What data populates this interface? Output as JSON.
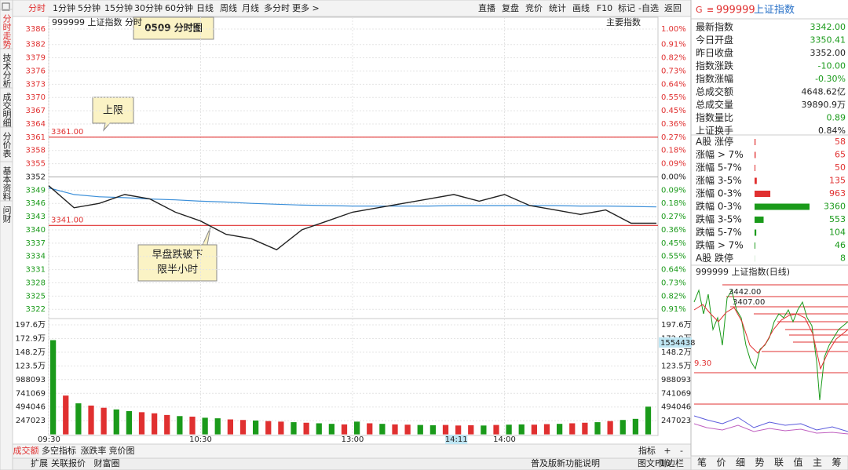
{
  "toolbar": {
    "periods": [
      "分时",
      "1分钟",
      "5分钟",
      "15分钟",
      "30分钟",
      "60分钟",
      "日线",
      "周线",
      "月线",
      "多分时",
      "更多 >"
    ],
    "tools": [
      "直播",
      "复盘",
      "竞价",
      "统计",
      "画线",
      "F10",
      "标记",
      "-自选",
      "返回"
    ]
  },
  "side_tabs": [
    "分时走势",
    "技术分析",
    "成交明细",
    "分价表",
    "基本资料",
    "问财"
  ],
  "intraday": {
    "title": "999999 上证指数  分时",
    "index_label": "主要指数",
    "annotation": "0509  分时图",
    "up_color": "#e03030",
    "down_color": "#1a9a1a",
    "price_axis": {
      "ylim": [
        3321.5,
        3385.5
      ],
      "yticks": [
        {
          "value": 3385.5,
          "label": "3386"
        },
        3382,
        3379,
        3376,
        3373,
        3370,
        3367,
        3364,
        3361,
        3358,
        3355,
        3352,
        3349,
        3346,
        3343,
        3340,
        3337,
        3334,
        3331,
        3328,
        3325,
        3322
      ],
      "pct_labels": [
        "1.00%",
        "0.91%",
        "0.82%",
        "0.73%",
        "0.64%",
        "0.55%",
        "0.45%",
        "0.36%",
        "0.27%",
        "0.18%",
        "0.09%",
        "0.00%",
        "0.09%",
        "0.18%",
        "0.27%",
        "0.36%",
        "0.45%",
        "0.55%",
        "0.64%",
        "0.73%",
        "0.82%",
        "0.91%"
      ]
    },
    "limits": [
      {
        "value": 3361,
        "label": "3361.00"
      },
      {
        "value": 3341,
        "label": "3341.00"
      }
    ],
    "limit_color": "#e03030",
    "callouts": {
      "upper": "上限",
      "break": [
        "早盘跌破下",
        "限半小时"
      ]
    },
    "xlim": [
      0,
      240
    ],
    "time_ticks": [
      {
        "value": 0,
        "label": "09:30"
      },
      {
        "value": 60,
        "label": "10:30"
      },
      {
        "value": 120,
        "label": "13:00"
      },
      {
        "value": 180,
        "label": "14:00"
      }
    ],
    "cursor_time": {
      "value": 161,
      "label": "14:11"
    },
    "series": {
      "x": [
        0,
        10,
        20,
        30,
        40,
        50,
        60,
        70,
        80,
        90,
        100,
        110,
        120,
        130,
        140,
        150,
        160,
        170,
        180,
        190,
        200,
        210,
        220,
        230,
        240
      ],
      "price": [
        3350,
        3345,
        3346,
        3348,
        3347,
        3344,
        3342,
        3339,
        3338,
        3335.5,
        3340,
        3342,
        3344,
        3345,
        3346,
        3347,
        3348,
        3346.5,
        3348,
        3345.5,
        3344.5,
        3343.5,
        3344.5,
        3341.5,
        3341.5
      ],
      "average": [
        3349.5,
        3348,
        3347.5,
        3347.3,
        3347,
        3346.8,
        3346.5,
        3346.3,
        3346,
        3345.8,
        3345.6,
        3345.5,
        3345.4,
        3345.4,
        3345.4,
        3345.4,
        3345.5,
        3345.5,
        3345.5,
        3345.5,
        3345.5,
        3345.4,
        3345.4,
        3345.3,
        3345.2
      ],
      "price_color": "#222222",
      "average_color": "#3b8fd9"
    },
    "volume": {
      "ylim": [
        0,
        1976184
      ],
      "yticks": [
        {
          "value": 1976184,
          "label": "197.6万"
        },
        {
          "value": 1729161,
          "label": "172.9万"
        },
        {
          "value": 1482138,
          "label": "148.2万"
        },
        {
          "value": 1235115,
          "label": "123.5万"
        },
        988093,
        741069,
        494046,
        247023
      ],
      "current": "1554438",
      "x": [
        0,
        5,
        10,
        15,
        20,
        25,
        30,
        35,
        40,
        45,
        50,
        55,
        60,
        65,
        70,
        75,
        80,
        85,
        90,
        95,
        100,
        105,
        110,
        115,
        120,
        125,
        130,
        135,
        140,
        145,
        150,
        155,
        160,
        165,
        170,
        175,
        180,
        185,
        190,
        195,
        200,
        205,
        210,
        215,
        220,
        225,
        230,
        235
      ],
      "values": [
        1700000,
        700000,
        560000,
        520000,
        480000,
        450000,
        420000,
        400000,
        380000,
        350000,
        330000,
        320000,
        300000,
        290000,
        270000,
        260000,
        250000,
        240000,
        230000,
        220000,
        210000,
        200000,
        190000,
        180000,
        230000,
        200000,
        190000,
        180000,
        175000,
        170000,
        165000,
        170000,
        160000,
        165000,
        160000,
        170000,
        175000,
        180000,
        175000,
        185000,
        190000,
        200000,
        210000,
        220000,
        240000,
        260000,
        280000,
        500000
      ],
      "colors": [
        "#1a9a1a",
        "#e03030",
        "#1a9a1a",
        "#e03030",
        "#e03030",
        "#1a9a1a",
        "#1a9a1a",
        "#e03030",
        "#e03030",
        "#e03030",
        "#1a9a1a",
        "#e03030",
        "#1a9a1a",
        "#1a9a1a",
        "#e03030",
        "#e03030",
        "#1a9a1a",
        "#e03030",
        "#e03030",
        "#1a9a1a",
        "#e03030",
        "#1a9a1a",
        "#1a9a1a",
        "#e03030",
        "#1a9a1a",
        "#e03030",
        "#1a9a1a",
        "#e03030",
        "#e03030",
        "#1a9a1a",
        "#1a9a1a",
        "#e03030",
        "#e03030",
        "#e03030",
        "#1a9a1a",
        "#e03030",
        "#1a9a1a",
        "#1a9a1a",
        "#e03030",
        "#e03030",
        "#1a9a1a",
        "#e03030",
        "#e03030",
        "#1a9a1a",
        "#e03030",
        "#1a9a1a",
        "#1a9a1a",
        "#1a9a1a"
      ]
    }
  },
  "indicator_tabs": [
    "成交额",
    "多空指标",
    "涨跌率",
    "竞价图"
  ],
  "indicator_controls": [
    "指标",
    "+",
    "-"
  ],
  "status_left": [
    "扩展",
    "关联报价",
    "财富圈"
  ],
  "status_right": [
    "普及版新功能说明",
    "图文F10",
    "侧边栏"
  ],
  "quote": {
    "marker": "G",
    "code": "999999",
    "name": "上证指数",
    "rows": [
      {
        "label": "最新指数",
        "value": "3342.00",
        "color": "#1a9a1a"
      },
      {
        "label": "今日开盘",
        "value": "3350.41",
        "color": "#1a9a1a"
      },
      {
        "label": "昨日收盘",
        "value": "3352.00",
        "color": "#222222"
      },
      {
        "label": "指数涨跌",
        "value": "-10.00",
        "color": "#1a9a1a"
      },
      {
        "label": "指数涨幅",
        "value": "-0.30%",
        "color": "#1a9a1a"
      },
      {
        "label": "总成交额",
        "value": "4648.62亿",
        "color": "#222222"
      },
      {
        "label": "总成交量",
        "value": "39890.9万",
        "color": "#222222"
      },
      {
        "label": "指数量比",
        "value": "0.89",
        "color": "#1a9a1a"
      },
      {
        "label": "上证换手",
        "value": "0.84%",
        "color": "#222222"
      }
    ]
  },
  "breadth": [
    {
      "label": "A股 涨停",
      "value": 58,
      "color": "#e03030"
    },
    {
      "label": "涨幅 > 7%",
      "value": 65,
      "color": "#e03030"
    },
    {
      "label": "涨幅 5-7%",
      "value": 50,
      "color": "#e03030"
    },
    {
      "label": "涨幅 3-5%",
      "value": 135,
      "color": "#e03030"
    },
    {
      "label": "涨幅 0-3%",
      "value": 963,
      "color": "#e03030"
    },
    {
      "label": "跌幅 0-3%",
      "value": 3360,
      "color": "#1a9a1a"
    },
    {
      "label": "跌幅 3-5%",
      "value": 553,
      "color": "#1a9a1a"
    },
    {
      "label": "跌幅 5-7%",
      "value": 104,
      "color": "#1a9a1a"
    },
    {
      "label": "跌幅 > 7%",
      "value": 46,
      "color": "#1a9a1a"
    },
    {
      "label": "A股 跌停",
      "value": 8,
      "color": "#1a9a1a"
    }
  ],
  "daily": {
    "title": "999999 上证指数(日线)",
    "labels": [
      "3442.00",
      "3407.00",
      "9.30"
    ]
  },
  "panel_tabs": [
    "笔",
    "价",
    "细",
    "势",
    "联",
    "值",
    "主",
    "筹"
  ]
}
